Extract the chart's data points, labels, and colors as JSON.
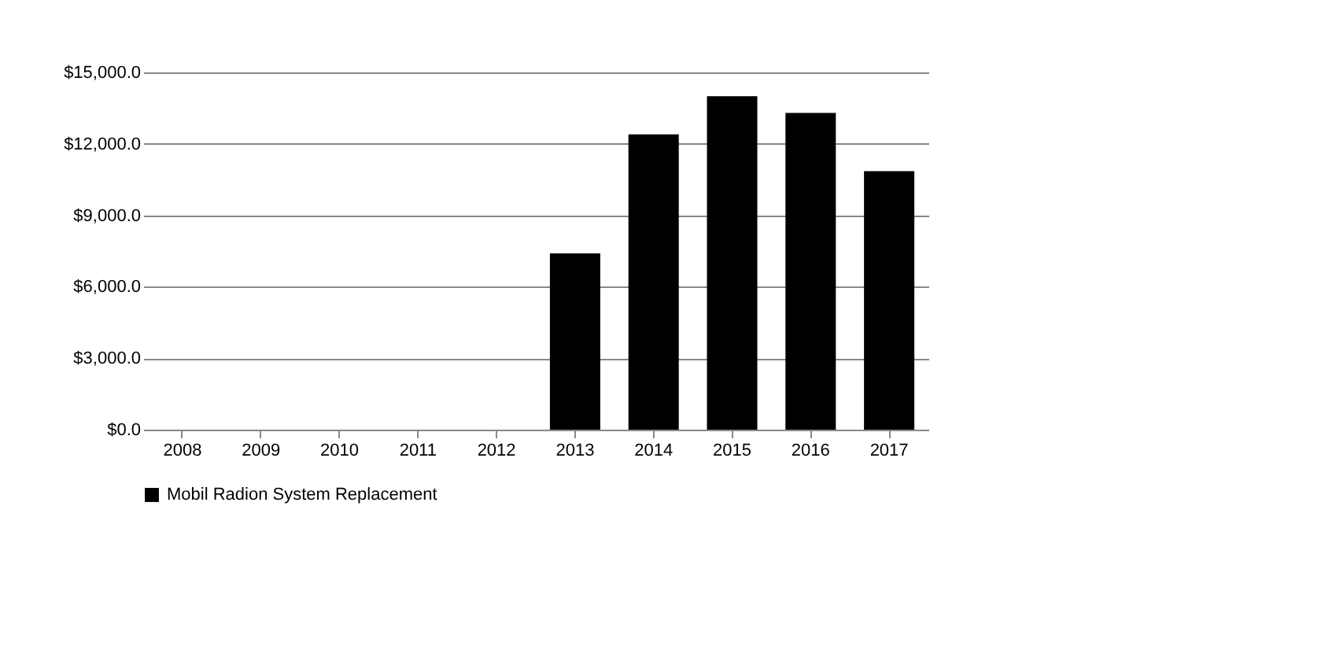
{
  "chart_data": {
    "type": "bar",
    "categories": [
      "2008",
      "2009",
      "2010",
      "2011",
      "2012",
      "2013",
      "2014",
      "2015",
      "2016",
      "2017"
    ],
    "series": [
      {
        "name": "Mobil Radion System Replacement",
        "color": "#000000",
        "values": [
          0,
          0,
          0,
          0,
          0,
          7400,
          12400,
          14000,
          13300,
          10850
        ]
      }
    ],
    "ylim": [
      0,
      15000
    ],
    "yticks": [
      {
        "value": 0,
        "label": "$0.0"
      },
      {
        "value": 3000,
        "label": "$3,000.0"
      },
      {
        "value": 6000,
        "label": "$6,000.0"
      },
      {
        "value": 9000,
        "label": "$9,000.0"
      },
      {
        "value": 12000,
        "label": "$12,000.0"
      },
      {
        "value": 15000,
        "label": "$15,000.0"
      }
    ],
    "grid": "y",
    "legend": "bottom"
  }
}
